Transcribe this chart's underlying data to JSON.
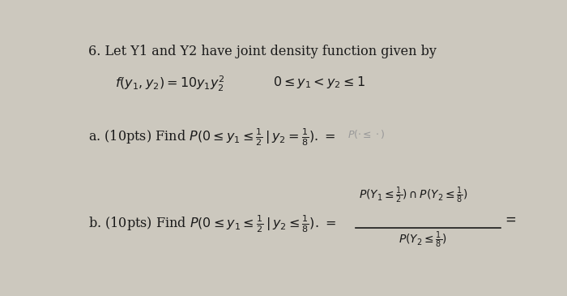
{
  "background_color": "#ccc8be",
  "text_color": "#1a1a1a",
  "figsize": [
    7.0,
    3.65
  ],
  "dpi": 100
}
